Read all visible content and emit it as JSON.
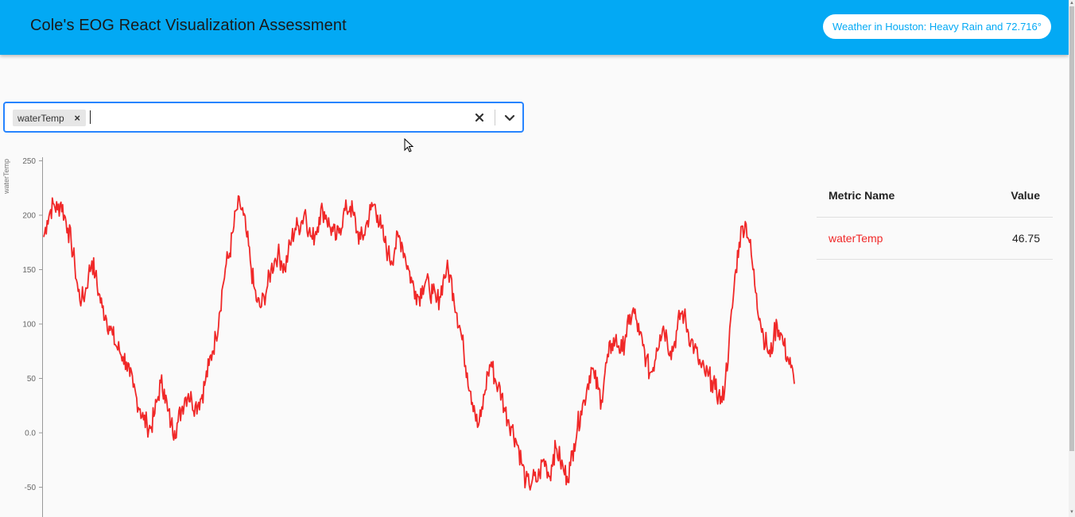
{
  "header": {
    "title": "Cole's EOG React Visualization Assessment",
    "weather": "Weather in Houston: Heavy Rain and 72.716°"
  },
  "metric_select": {
    "selected": [
      "waterTemp"
    ],
    "clear_icon": "close-icon",
    "dropdown_icon": "chevron-down-icon"
  },
  "table": {
    "headers": {
      "name": "Metric Name",
      "value": "Value"
    },
    "rows": [
      {
        "name": "waterTemp",
        "value": "46.75"
      }
    ]
  },
  "colors": {
    "accent": "#03a9f4",
    "series": "#f02828"
  },
  "chart_data": {
    "type": "line",
    "ylabel": "waterTemp",
    "xlabel": "",
    "title": "",
    "ylim": [
      -70,
      255
    ],
    "yticks": [
      "250",
      "200",
      "150",
      "100",
      "50",
      "0.0",
      "-50"
    ],
    "ytick_values": [
      250,
      200,
      150,
      100,
      50,
      0,
      -50
    ],
    "series": [
      {
        "color": "#f02828",
        "values": [
          180,
          195,
          205,
          210,
          205,
          212,
          200,
          188,
          175,
          155,
          130,
          122,
          128,
          145,
          158,
          145,
          128,
          115,
          108,
          98,
          90,
          80,
          75,
          70,
          65,
          52,
          42,
          32,
          22,
          12,
          8,
          4,
          15,
          30,
          46,
          40,
          20,
          8,
          2,
          10,
          22,
          32,
          36,
          30,
          25,
          28,
          35,
          48,
          62,
          75,
          88,
          110,
          135,
          155,
          165,
          185,
          205,
          210,
          200,
          180,
          158,
          135,
          120,
          115,
          125,
          135,
          150,
          158,
          165,
          158,
          150,
          165,
          178,
          188,
          190,
          195,
          205,
          185,
          178,
          185,
          198,
          205,
          200,
          190,
          185,
          178,
          188,
          200,
          205,
          208,
          200,
          185,
          178,
          182,
          195,
          205,
          210,
          200,
          188,
          175,
          165,
          158,
          170,
          180,
          175,
          162,
          150,
          138,
          130,
          125,
          135,
          140,
          132,
          128,
          120,
          125,
          140,
          150,
          145,
          128,
          110,
          95,
          75,
          55,
          38,
          25,
          5,
          15,
          35,
          55,
          65,
          50,
          42,
          35,
          20,
          12,
          5,
          -5,
          -15,
          -30,
          -45,
          -48,
          -42,
          -45,
          -38,
          -25,
          -30,
          -40,
          -20,
          -15,
          -25,
          -35,
          -40,
          -30,
          -10,
          5,
          20,
          30,
          45,
          60,
          50,
          40,
          30,
          55,
          70,
          82,
          85,
          80,
          75,
          90,
          100,
          112,
          105,
          90,
          80,
          68,
          55,
          60,
          78,
          90,
          98,
          88,
          75,
          80,
          95,
          110,
          108,
          95,
          85,
          78,
          68,
          60,
          55,
          52,
          48,
          40,
          35,
          28,
          50,
          80,
          115,
          150,
          175,
          190,
          192,
          175,
          150,
          128,
          105,
          90,
          80,
          70,
          88,
          100,
          92,
          80,
          70,
          60,
          45
        ]
      }
    ]
  }
}
